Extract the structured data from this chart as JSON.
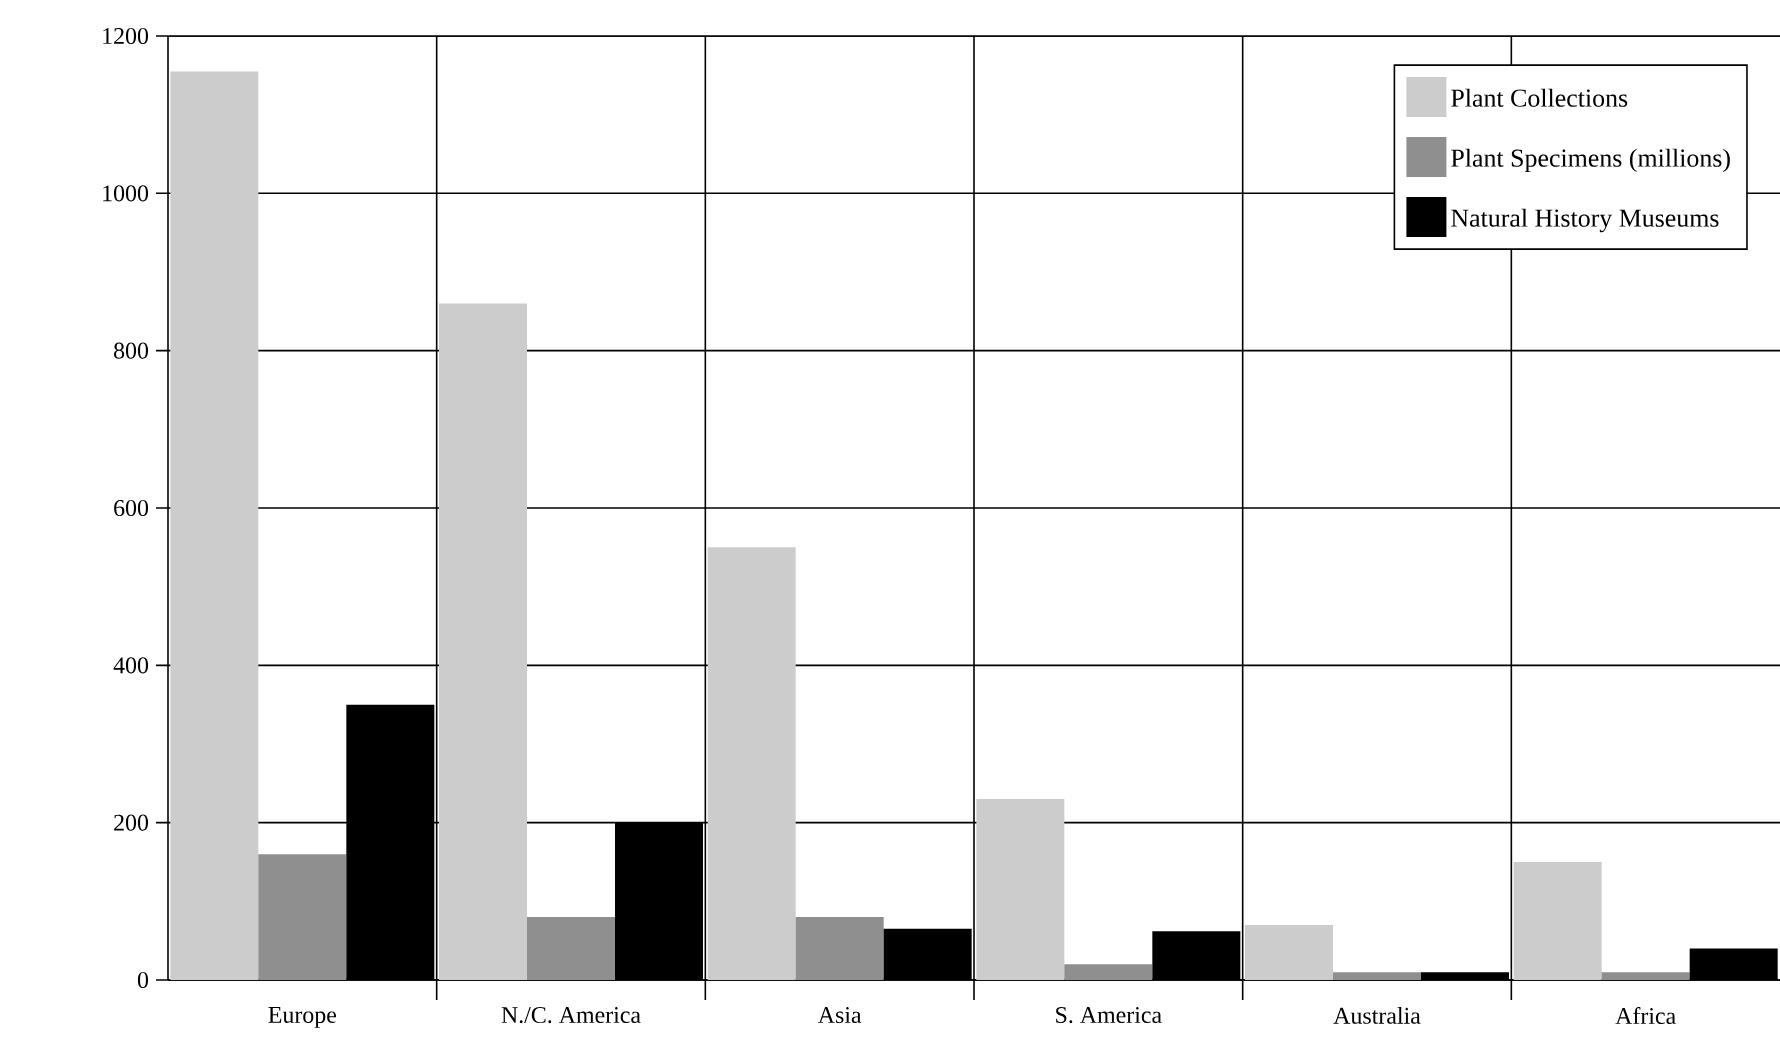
{
  "chart_data": {
    "type": "bar",
    "categories": [
      "Europe",
      "N./C. America",
      "Asia",
      "S. America",
      "Australia",
      "Africa"
    ],
    "series": [
      {
        "name": "Plant Collections",
        "color": "#cccccc",
        "values": [
          1155,
          860,
          550,
          230,
          70,
          150
        ]
      },
      {
        "name": "Plant Specimens (millions)",
        "color": "#8f8f8f",
        "values": [
          160,
          80,
          80,
          20,
          10,
          10
        ]
      },
      {
        "name": "Natural History Museums",
        "color": "#000000",
        "values": [
          350,
          200,
          65,
          62,
          10,
          40
        ]
      }
    ],
    "ylim": [
      0,
      1200
    ],
    "yticks": [
      0,
      200,
      400,
      600,
      800,
      1000,
      1200
    ],
    "grid": true,
    "legend": "top right"
  }
}
